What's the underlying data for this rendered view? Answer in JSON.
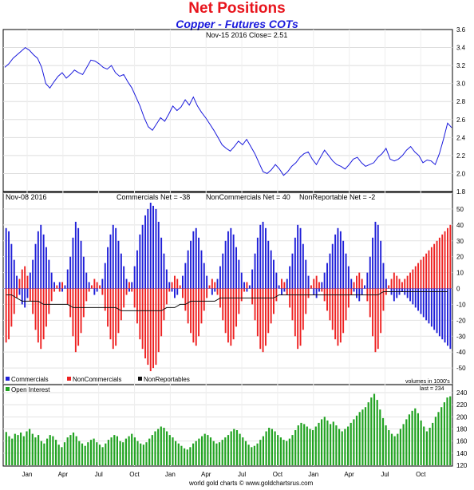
{
  "title": "Net Positions",
  "subtitle": "Copper - Futures COTs",
  "price_panel": {
    "info": "Nov-15  2016   Close= 2.51"
  },
  "net_panel": {
    "date": "Nov-08  2016",
    "commercials": "Commercials Net = -38",
    "noncommercials": "NonCommercials Net = 40",
    "nonreportable": "NonReportable Net = -2"
  },
  "legend": {
    "commercials": "Commercials",
    "noncommercials": "NonCommercials",
    "nonreportables": "NonReportables"
  },
  "oi_panel": {
    "label": "Open Interest",
    "units": "volumes in 1000's",
    "last": "last = 234"
  },
  "footer": "world gold charts © www.goldchartsrus.com",
  "colors": {
    "price": "#1a1adc",
    "commercials": "#1f1fd8",
    "noncommercials": "#ee2222",
    "nonreportables": "#111111",
    "open_interest": "#22a322",
    "title": "#e8141c"
  },
  "chart_data": [
    {
      "type": "line",
      "series": [
        {
          "name": "Copper",
          "values": [
            3.18,
            3.22,
            3.28,
            3.32,
            3.36,
            3.4,
            3.37,
            3.32,
            3.28,
            3.18,
            3.0,
            2.95,
            3.02,
            3.08,
            3.12,
            3.06,
            3.1,
            3.15,
            3.12,
            3.1,
            3.18,
            3.26,
            3.25,
            3.22,
            3.18,
            3.16,
            3.2,
            3.12,
            3.08,
            3.1,
            3.02,
            2.95,
            2.85,
            2.75,
            2.62,
            2.52,
            2.48,
            2.55,
            2.62,
            2.58,
            2.66,
            2.75,
            2.7,
            2.74,
            2.82,
            2.76,
            2.85,
            2.75,
            2.68,
            2.62,
            2.55,
            2.48,
            2.4,
            2.32,
            2.28,
            2.25,
            2.3,
            2.36,
            2.32,
            2.38,
            2.3,
            2.22,
            2.12,
            2.02,
            2.0,
            2.04,
            2.1,
            2.05,
            1.98,
            2.02,
            2.08,
            2.12,
            2.18,
            2.22,
            2.24,
            2.16,
            2.1,
            2.18,
            2.26,
            2.2,
            2.14,
            2.1,
            2.08,
            2.05,
            2.1,
            2.16,
            2.18,
            2.12,
            2.08,
            2.1,
            2.12,
            2.18,
            2.22,
            2.28,
            2.16,
            2.14,
            2.16,
            2.2,
            2.26,
            2.3,
            2.24,
            2.2,
            2.12,
            2.15,
            2.14,
            2.1,
            2.22,
            2.38,
            2.56,
            2.51
          ]
        }
      ],
      "ylim": [
        1.8,
        3.6
      ],
      "yticks": [
        1.8,
        2.0,
        2.2,
        2.4,
        2.6,
        2.8,
        3.0,
        3.2,
        3.4,
        3.6
      ],
      "ytick_labels": [
        "1.8",
        "2.0",
        "2.2",
        "2.4",
        "2.6",
        "2.8",
        "3.0",
        "3.2",
        "3.4",
        "3.6"
      ]
    },
    {
      "type": "bar",
      "ylim": [
        -60,
        60
      ],
      "yticks": [
        -60,
        -50,
        -40,
        -30,
        -20,
        -10,
        0,
        10,
        20,
        30,
        40,
        50,
        60
      ],
      "ytick_labels": [
        "-60",
        "-50",
        "-40",
        "-30",
        "-20",
        "-10",
        "0",
        "10",
        "20",
        "30",
        "40",
        "50",
        "60"
      ],
      "series": [
        {
          "name": "Commercials",
          "values": [
            38,
            36,
            28,
            18,
            8,
            -4,
            -10,
            -12,
            -6,
            10,
            18,
            28,
            36,
            40,
            34,
            26,
            18,
            10,
            4,
            0,
            4,
            -2,
            2,
            12,
            20,
            32,
            42,
            38,
            30,
            20,
            10,
            4,
            0,
            -4,
            -2,
            0,
            6,
            16,
            26,
            34,
            40,
            38,
            30,
            22,
            14,
            6,
            -2,
            4,
            14,
            24,
            34,
            40,
            46,
            50,
            54,
            52,
            50,
            42,
            32,
            22,
            12,
            4,
            -2,
            -6,
            -4,
            0,
            8,
            16,
            24,
            30,
            36,
            38,
            32,
            24,
            16,
            8,
            0,
            -4,
            -2,
            6,
            14,
            22,
            30,
            36,
            38,
            34,
            26,
            18,
            10,
            4,
            -2,
            2,
            12,
            22,
            32,
            40,
            42,
            38,
            30,
            24,
            18,
            10,
            2,
            -4,
            -2,
            6,
            14,
            22,
            32,
            40,
            38,
            28,
            18,
            8,
            0,
            -4,
            -6,
            -2,
            4,
            10,
            16,
            22,
            28,
            34,
            38,
            36,
            30,
            22,
            14,
            6,
            -2,
            -6,
            -8,
            -4,
            2,
            10,
            20,
            32,
            42,
            40,
            30,
            16,
            6,
            0,
            -4,
            -8,
            -6,
            -4,
            -2,
            -4,
            -6,
            -8,
            -10,
            -12,
            -14,
            -16,
            -18,
            -20,
            -22,
            -24,
            -26,
            -28,
            -30,
            -32,
            -34,
            -36,
            -38
          ]
        },
        {
          "name": "NonCommercials",
          "values": [
            -34,
            -32,
            -24,
            -16,
            -6,
            6,
            12,
            14,
            8,
            -8,
            -16,
            -26,
            -34,
            -38,
            -32,
            -24,
            -16,
            -8,
            -2,
            2,
            -2,
            4,
            0,
            -10,
            -18,
            -30,
            -40,
            -36,
            -28,
            -18,
            -8,
            -2,
            2,
            6,
            4,
            2,
            -4,
            -14,
            -24,
            -32,
            -38,
            -36,
            -28,
            -20,
            -12,
            -4,
            4,
            -2,
            -12,
            -22,
            -32,
            -38,
            -44,
            -48,
            -52,
            -50,
            -48,
            -40,
            -30,
            -20,
            -10,
            -2,
            4,
            8,
            6,
            2,
            -6,
            -14,
            -22,
            -28,
            -34,
            -36,
            -30,
            -22,
            -14,
            -6,
            2,
            6,
            4,
            -4,
            -12,
            -20,
            -28,
            -34,
            -36,
            -32,
            -24,
            -16,
            -8,
            -2,
            4,
            0,
            -10,
            -20,
            -30,
            -38,
            -40,
            -36,
            -28,
            -22,
            -16,
            -8,
            0,
            6,
            4,
            -4,
            -12,
            -20,
            -30,
            -38,
            -36,
            -26,
            -16,
            -6,
            2,
            6,
            8,
            4,
            -2,
            -8,
            -14,
            -20,
            -26,
            -32,
            -36,
            -34,
            -28,
            -20,
            -12,
            -4,
            4,
            8,
            10,
            6,
            0,
            -8,
            -18,
            -30,
            -40,
            -38,
            -28,
            -14,
            -4,
            2,
            6,
            10,
            8,
            6,
            4,
            6,
            8,
            10,
            12,
            14,
            16,
            18,
            20,
            22,
            24,
            26,
            28,
            30,
            32,
            34,
            36,
            38,
            40
          ]
        },
        {
          "name": "NonReportables",
          "values": [
            -4,
            -4,
            -4,
            -5,
            -6,
            -7,
            -8,
            -8,
            -8,
            -8,
            -8,
            -8,
            -8,
            -9,
            -10,
            -10,
            -10,
            -10,
            -10,
            -10,
            -10,
            -10,
            -10,
            -10,
            -11,
            -12,
            -12,
            -12,
            -12,
            -12,
            -12,
            -12,
            -12,
            -12,
            -12,
            -12,
            -12,
            -12,
            -12,
            -12,
            -12,
            -12,
            -13,
            -14,
            -14,
            -14,
            -14,
            -14,
            -14,
            -14,
            -14,
            -14,
            -14,
            -14,
            -14,
            -14,
            -14,
            -14,
            -14,
            -13,
            -12,
            -12,
            -12,
            -12,
            -11,
            -10,
            -10,
            -10,
            -9,
            -8,
            -8,
            -8,
            -8,
            -8,
            -8,
            -8,
            -8,
            -8,
            -8,
            -7,
            -6,
            -6,
            -6,
            -6,
            -6,
            -6,
            -6,
            -6,
            -6,
            -6,
            -6,
            -6,
            -6,
            -6,
            -6,
            -6,
            -6,
            -6,
            -6,
            -6,
            -6,
            -5,
            -4,
            -4,
            -4,
            -4,
            -4,
            -4,
            -4,
            -4,
            -4,
            -4,
            -4,
            -4,
            -4,
            -4,
            -4,
            -4,
            -4,
            -4,
            -4,
            -4,
            -4,
            -4,
            -4,
            -4,
            -4,
            -4,
            -4,
            -4,
            -4,
            -4,
            -4,
            -4,
            -4,
            -4,
            -4,
            -4,
            -4,
            -4,
            -3,
            -2,
            -2,
            -2,
            -2,
            -2,
            -2,
            -2,
            -2,
            -2,
            -2,
            -2,
            -2,
            -2,
            -2,
            -2,
            -2,
            -2,
            -2,
            -2,
            -2,
            -2,
            -2,
            -2,
            -2,
            -2
          ]
        }
      ]
    },
    {
      "type": "bar",
      "series": [
        {
          "name": "Open Interest",
          "values": [
            175,
            168,
            164,
            172,
            170,
            174,
            168,
            176,
            180,
            172,
            166,
            170,
            160,
            156,
            164,
            170,
            168,
            162,
            154,
            150,
            158,
            166,
            170,
            174,
            168,
            160,
            156,
            152,
            158,
            162,
            164,
            158,
            154,
            150,
            156,
            162,
            166,
            170,
            168,
            160,
            158,
            164,
            168,
            172,
            166,
            160,
            156,
            154,
            158,
            164,
            170,
            176,
            180,
            184,
            182,
            176,
            170,
            166,
            160,
            156,
            152,
            148,
            146,
            150,
            156,
            160,
            164,
            168,
            172,
            170,
            166,
            160,
            156,
            158,
            162,
            166,
            170,
            176,
            180,
            178,
            172,
            166,
            160,
            154,
            150,
            152,
            156,
            162,
            168,
            176,
            182,
            180,
            176,
            170,
            166,
            162,
            160,
            164,
            170,
            178,
            186,
            190,
            188,
            184,
            180,
            178,
            184,
            190,
            196,
            200,
            194,
            188,
            192,
            186,
            180,
            176,
            180,
            184,
            190,
            196,
            202,
            208,
            212,
            216,
            224,
            232,
            238,
            228,
            212,
            198,
            186,
            178,
            172,
            168,
            172,
            180,
            188,
            196,
            204,
            210,
            214,
            206,
            194,
            184,
            176,
            182,
            190,
            200,
            208,
            216,
            224,
            232,
            234
          ]
        }
      ],
      "ylim": [
        120,
        240
      ],
      "yticks": [
        120,
        140,
        160,
        180,
        200,
        220,
        240
      ],
      "ytick_labels": [
        "120",
        "140",
        "160",
        "180",
        "200",
        "220",
        "240"
      ],
      "xtick_labels": [
        "Jan",
        "Apr",
        "Jul",
        "Oct",
        "Jan",
        "Apr",
        "Jul",
        "Oct",
        "Jan",
        "Apr",
        "Jul",
        "Oct"
      ]
    }
  ]
}
